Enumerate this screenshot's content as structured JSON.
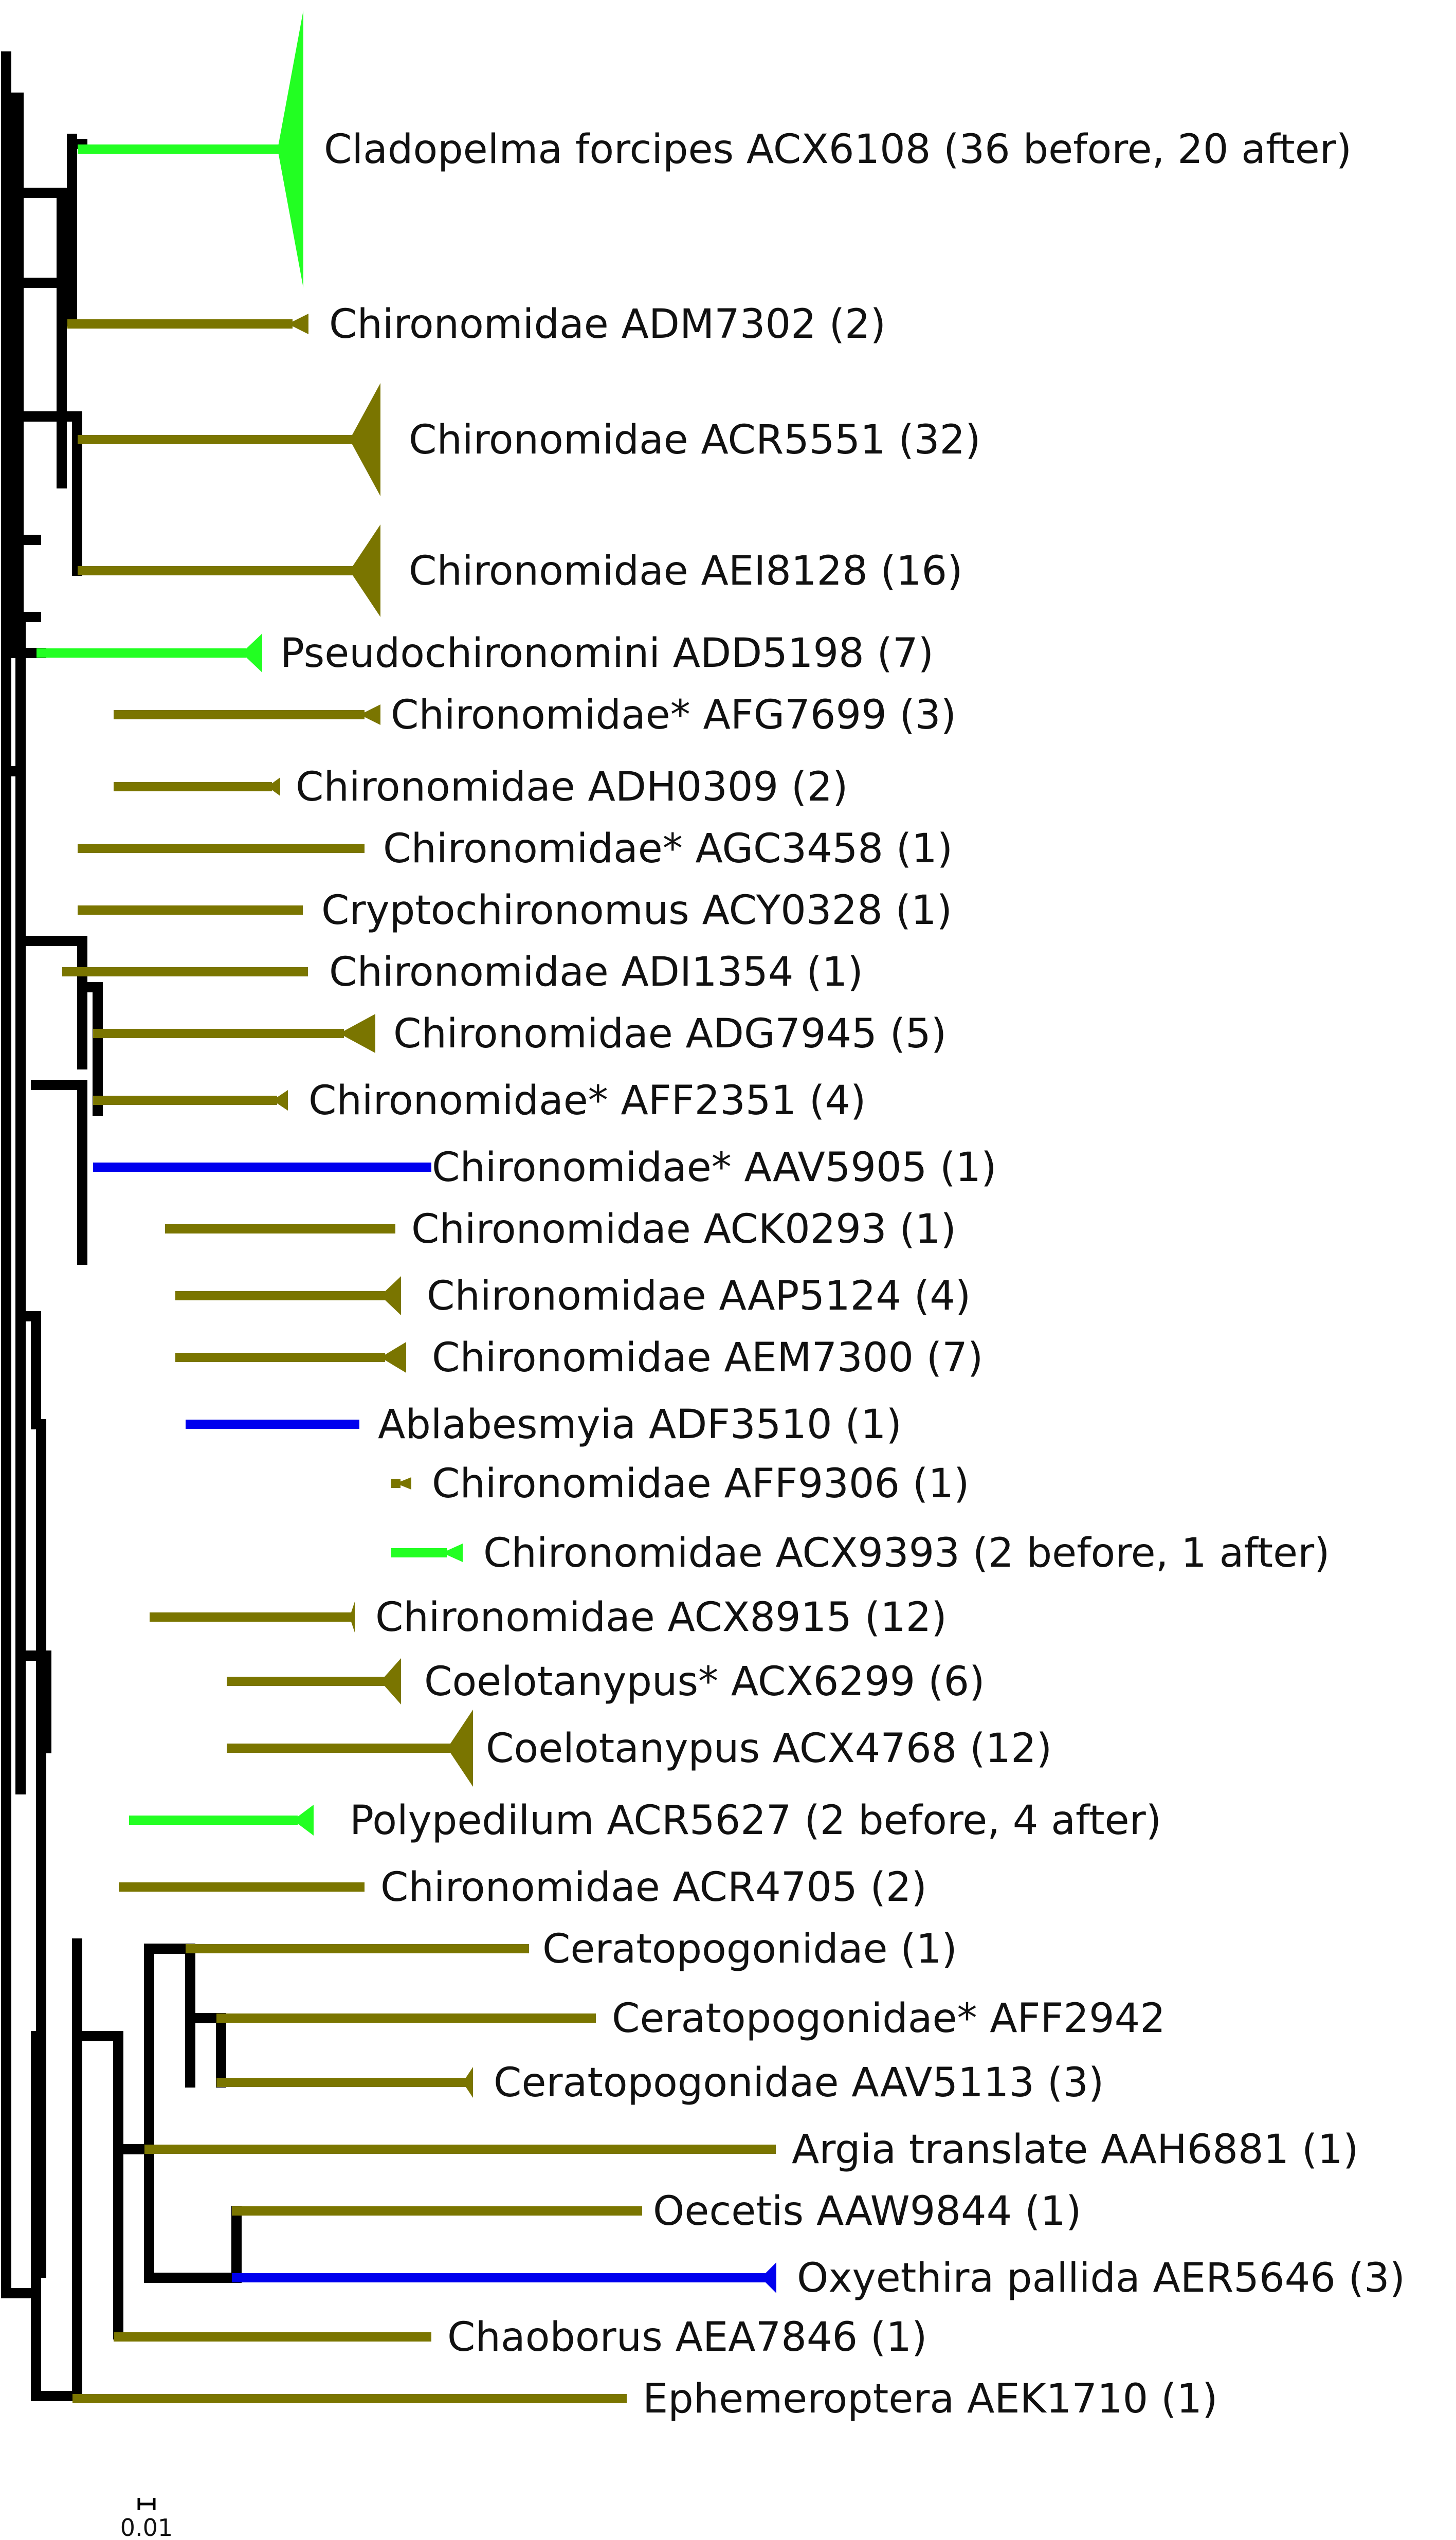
{
  "colors": {
    "background": "#ffffff",
    "tree_black": "#000000",
    "olive": "#7a7500",
    "green": "#22ff22",
    "blue": "#0000ee"
  },
  "taxa": [
    {
      "label": "Cladopelma forcipes ACX6108 (36 before, 20 after)",
      "color": "green"
    },
    {
      "label": "Chironomidae ADM7302 (2)",
      "color": "olive"
    },
    {
      "label": "Chironomidae ACR5551 (32)",
      "color": "olive"
    },
    {
      "label": "Chironomidae AEI8128 (16)",
      "color": "olive"
    },
    {
      "label": "Pseudochironomini ADD5198 (7)",
      "color": "green"
    },
    {
      "label": "Chironomidae* AFG7699 (3)",
      "color": "olive"
    },
    {
      "label": "Chironomidae ADH0309 (2)",
      "color": "olive"
    },
    {
      "label": "Chironomidae* AGC3458 (1)",
      "color": "olive"
    },
    {
      "label": "Cryptochironomus ACY0328 (1)",
      "color": "olive"
    },
    {
      "label": "Chironomidae ADI1354 (1)",
      "color": "olive"
    },
    {
      "label": "Chironomidae ADG7945 (5)",
      "color": "olive"
    },
    {
      "label": "Chironomidae* AFF2351 (4)",
      "color": "olive"
    },
    {
      "label": "Chironomidae* AAV5905 (1)",
      "color": "blue"
    },
    {
      "label": "Chironomidae ACK0293 (1)",
      "color": "olive"
    },
    {
      "label": "Chironomidae AAP5124 (4)",
      "color": "olive"
    },
    {
      "label": "Chironomidae AEM7300 (7)",
      "color": "olive"
    },
    {
      "label": "Ablabesmyia ADF3510 (1)",
      "color": "blue"
    },
    {
      "label": "Chironomidae AFF9306 (1)",
      "color": "olive"
    },
    {
      "label": "Chironomidae ACX9393 (2 before, 1 after)",
      "color": "green"
    },
    {
      "label": "Chironomidae ACX8915 (12)",
      "color": "olive"
    },
    {
      "label": "Coelotanypus* ACX6299 (6)",
      "color": "olive"
    },
    {
      "label": "Coelotanypus ACX4768 (12)",
      "color": "olive"
    },
    {
      "label": "Polypedilum ACR5627 (2 before, 4 after)",
      "color": "green"
    },
    {
      "label": "Chironomidae ACR4705 (2)",
      "color": "olive"
    },
    {
      "label": "Ceratopogonidae (1)",
      "color": "olive"
    },
    {
      "label": "Ceratopogonidae* AFF2942",
      "color": "olive"
    },
    {
      "label": "Ceratopogonidae AAV5113 (3)",
      "color": "olive"
    },
    {
      "label": "Argia translate AAH6881 (1)",
      "color": "olive"
    },
    {
      "label": "Oecetis AAW9844 (1)",
      "color": "olive"
    },
    {
      "label": "Oxyethira pallida AER5646 (3)",
      "color": "blue"
    },
    {
      "label": "Chaoborus AEA7846 (1)",
      "color": "olive"
    },
    {
      "label": "Ephemeroptera AEK1710 (1)",
      "color": "olive"
    }
  ],
  "scale_bar": {
    "label": "0.01"
  }
}
